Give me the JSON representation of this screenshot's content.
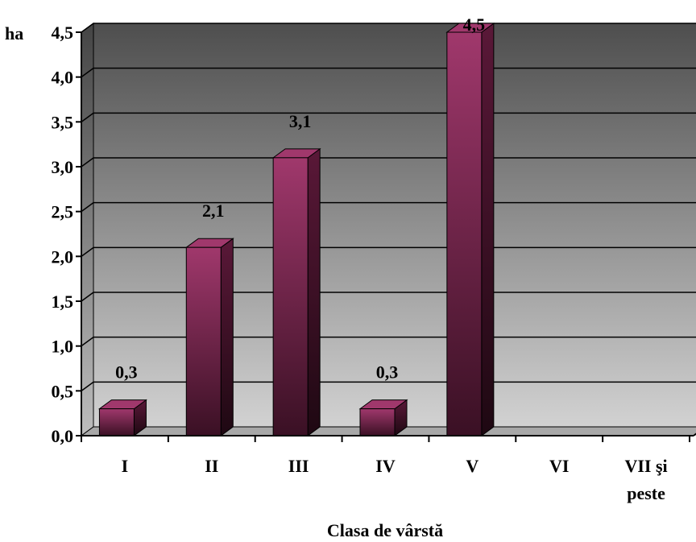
{
  "chart_data": {
    "type": "bar",
    "title": "",
    "xlabel": "Clasa de vârstă",
    "ylabel": "ha",
    "ylim": [
      0,
      4.5
    ],
    "ytick_step": 0.5,
    "categories": [
      "I",
      "II",
      "III",
      "IV",
      "V",
      "VI",
      "VII şi peste"
    ],
    "category_lines": [
      [
        "I"
      ],
      [
        "II"
      ],
      [
        "III"
      ],
      [
        "IV"
      ],
      [
        "V"
      ],
      [
        "VI"
      ],
      [
        "VII şi",
        "peste"
      ]
    ],
    "values": [
      0.3,
      2.1,
      3.1,
      0.3,
      4.5,
      null,
      null
    ],
    "data_labels": [
      "0,3",
      "2,1",
      "3,1",
      "0,3",
      "4,5",
      "",
      ""
    ],
    "ytick_labels": [
      "0,0",
      "0,5",
      "1,0",
      "1,5",
      "2,0",
      "2,5",
      "3,0",
      "3,5",
      "4,0",
      "4,5"
    ],
    "grid": true,
    "legend": "none",
    "colors": {
      "bar_top": "#a0386c",
      "bar_bottom": "#3a1024",
      "wall_top": "#4e4e4e",
      "wall_bottom": "#d2d2d2",
      "floor": "#a8a8a8",
      "grid": "#000000"
    }
  }
}
